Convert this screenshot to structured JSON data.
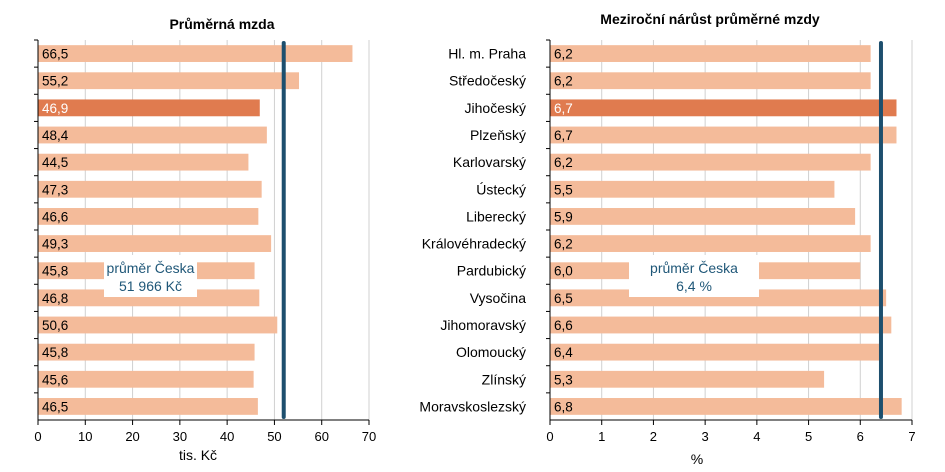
{
  "chart_data": [
    {
      "type": "bar",
      "orientation": "horizontal",
      "title": "Průměrná mzda",
      "xlabel": "tis. Kč",
      "xlim": [
        0,
        70
      ],
      "xticks": [
        "0",
        "10",
        "20",
        "30",
        "40",
        "50",
        "60",
        "70"
      ],
      "grid": true,
      "values": [
        66.5,
        55.2,
        46.9,
        48.4,
        44.5,
        47.3,
        46.6,
        49.3,
        45.8,
        46.8,
        50.6,
        45.8,
        45.6,
        46.5
      ],
      "value_labels": [
        "66,5",
        "55,2",
        "46,9",
        "48,4",
        "44,5",
        "47,3",
        "46,6",
        "49,3",
        "45,8",
        "46,8",
        "50,6",
        "45,8",
        "45,6",
        "46,5"
      ],
      "highlight_index": 2,
      "reference_line": {
        "value": 51.966,
        "label_line1": "průměr Česka",
        "label_line2": "51 966 Kč"
      },
      "colors": {
        "bar": "#f4bb9a",
        "highlight": "#e07b4f",
        "reference": "#1d4f6e"
      }
    },
    {
      "type": "bar",
      "orientation": "horizontal",
      "title": "Meziroční nárůst průměrné mzdy",
      "xlabel": "%",
      "xlim": [
        0,
        7
      ],
      "xticks": [
        "0",
        "1",
        "2",
        "3",
        "4",
        "5",
        "6",
        "7"
      ],
      "grid": true,
      "categories": [
        "Hl. m. Praha",
        "Středočeský",
        "Jihočeský",
        "Plzeňský",
        "Karlovarský",
        "Ústecký",
        "Liberecký",
        "Královéhradecký",
        "Pardubický",
        "Vysočina",
        "Jihomoravský",
        "Olomoucký",
        "Zlínský",
        "Moravskoslezský"
      ],
      "values": [
        6.2,
        6.2,
        6.7,
        6.7,
        6.2,
        5.5,
        5.9,
        6.2,
        6.0,
        6.5,
        6.6,
        6.4,
        5.3,
        6.8
      ],
      "value_labels": [
        "6,2",
        "6,2",
        "6,7",
        "6,7",
        "6,2",
        "5,5",
        "5,9",
        "6,2",
        "6,0",
        "6,5",
        "6,6",
        "6,4",
        "5,3",
        "6,8"
      ],
      "highlight_index": 2,
      "reference_line": {
        "value": 6.4,
        "label_line1": "průměr Česka",
        "label_line2": "6,4 %"
      },
      "colors": {
        "bar": "#f4bb9a",
        "highlight": "#e07b4f",
        "reference": "#1d4f6e"
      }
    }
  ]
}
